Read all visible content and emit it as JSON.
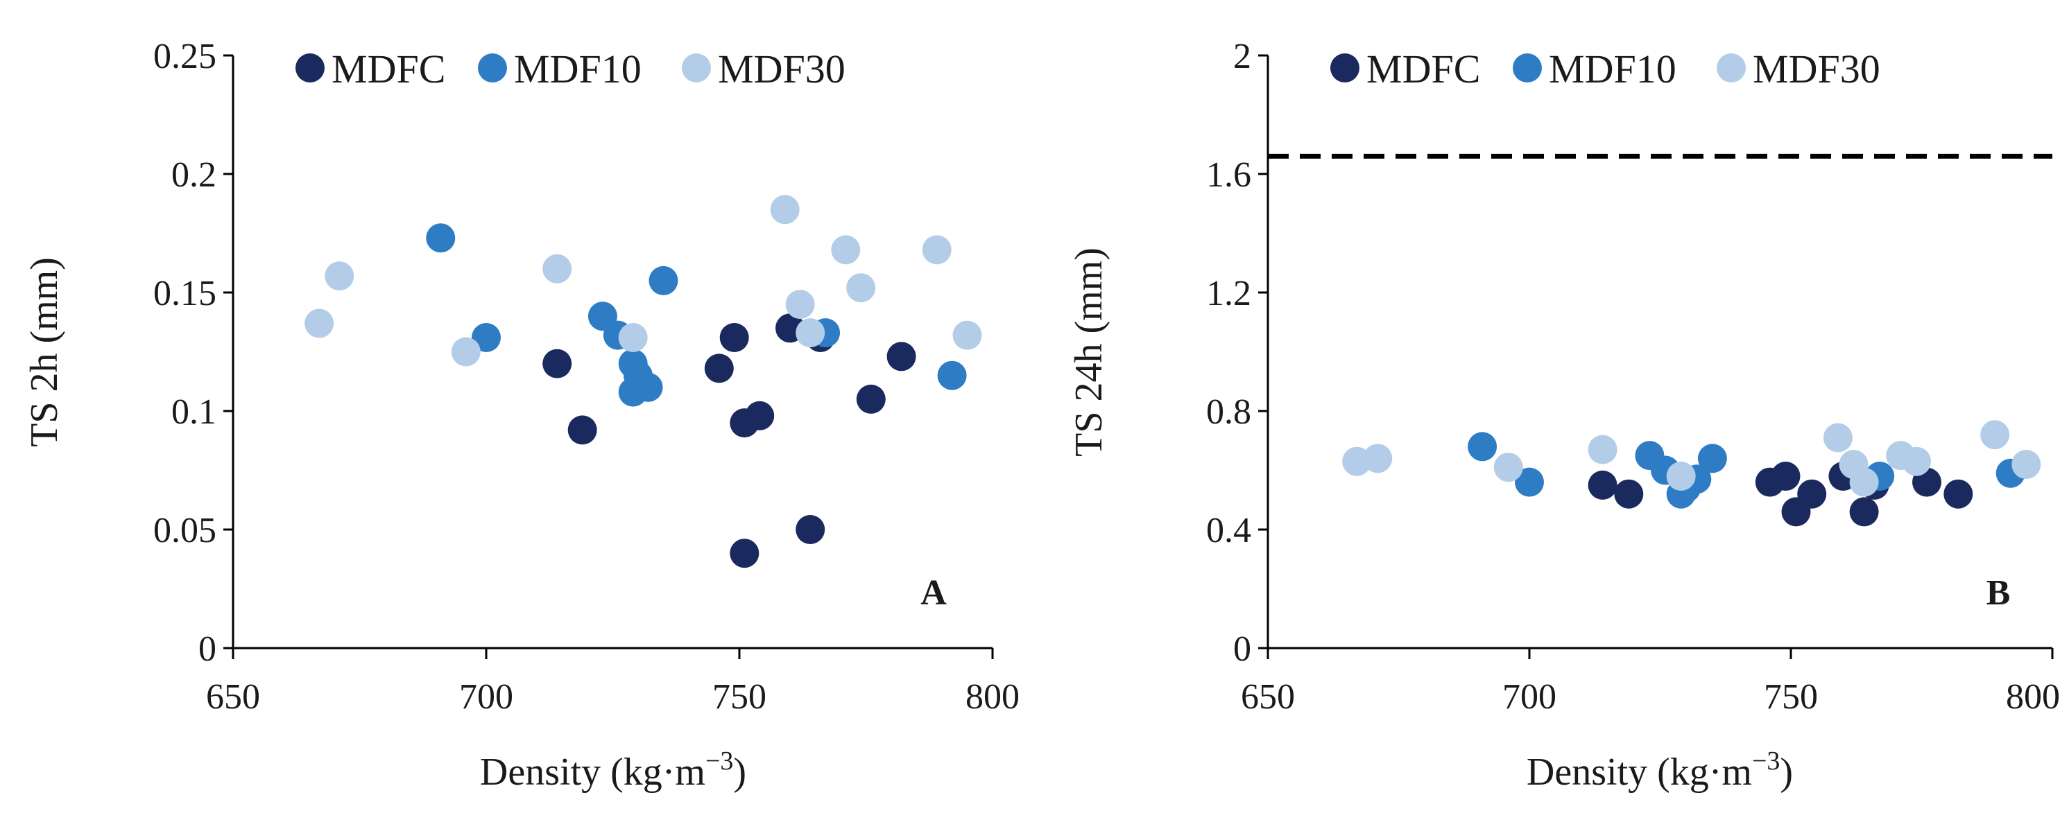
{
  "chart_data": [
    {
      "type": "scatter",
      "panel": "A",
      "xlabel": "Density (kg·m",
      "xlabel_sup": "−3",
      "xlabel_close": ")",
      "ylabel": "TS 2h (mm)",
      "xlim": [
        650,
        800
      ],
      "ylim": [
        0,
        0.25
      ],
      "xticks": [
        "650",
        "700",
        "750",
        "800"
      ],
      "yticks": [
        "0",
        "0.05",
        "0.1",
        "0.15",
        "0.2",
        "0.25"
      ],
      "legend_position": "top",
      "series": [
        {
          "name": "MDFC",
          "color": "#1b2a5e",
          "points": [
            [
              714,
              0.12
            ],
            [
              719,
              0.092
            ],
            [
              746,
              0.118
            ],
            [
              749,
              0.131
            ],
            [
              751,
              0.095
            ],
            [
              751,
              0.04
            ],
            [
              754,
              0.098
            ],
            [
              760,
              0.135
            ],
            [
              764,
              0.05
            ],
            [
              766,
              0.131
            ],
            [
              776,
              0.105
            ],
            [
              782,
              0.123
            ]
          ]
        },
        {
          "name": "MDF10",
          "color": "#2e7dc4",
          "points": [
            [
              691,
              0.173
            ],
            [
              700,
              0.131
            ],
            [
              723,
              0.14
            ],
            [
              726,
              0.132
            ],
            [
              729,
              0.12
            ],
            [
              729,
              0.108
            ],
            [
              730,
              0.115
            ],
            [
              732,
              0.11
            ],
            [
              735,
              0.155
            ],
            [
              767,
              0.133
            ],
            [
              792,
              0.115
            ]
          ]
        },
        {
          "name": "MDF30",
          "color": "#b3cde8",
          "points": [
            [
              667,
              0.137
            ],
            [
              671,
              0.157
            ],
            [
              696,
              0.125
            ],
            [
              714,
              0.16
            ],
            [
              729,
              0.131
            ],
            [
              759,
              0.185
            ],
            [
              762,
              0.145
            ],
            [
              764,
              0.133
            ],
            [
              771,
              0.168
            ],
            [
              774,
              0.152
            ],
            [
              789,
              0.168
            ],
            [
              795,
              0.132
            ]
          ]
        }
      ]
    },
    {
      "type": "scatter",
      "panel": "B",
      "xlabel": "Density (kg·m",
      "xlabel_sup": "−3",
      "xlabel_close": ")",
      "ylabel": "TS 24h (mm)",
      "xlim": [
        650,
        800
      ],
      "ylim": [
        0,
        2
      ],
      "xticks": [
        "650",
        "700",
        "750",
        "800"
      ],
      "yticks": [
        "0",
        "0.4",
        "0.8",
        "1.2",
        "1.6",
        "2"
      ],
      "reference_line_y": 1.66,
      "legend_position": "top",
      "series": [
        {
          "name": "MDFC",
          "color": "#1b2a5e",
          "points": [
            [
              714,
              0.55
            ],
            [
              719,
              0.52
            ],
            [
              746,
              0.56
            ],
            [
              749,
              0.58
            ],
            [
              751,
              0.46
            ],
            [
              754,
              0.52
            ],
            [
              760,
              0.58
            ],
            [
              764,
              0.46
            ],
            [
              766,
              0.55
            ],
            [
              776,
              0.56
            ],
            [
              782,
              0.52
            ]
          ]
        },
        {
          "name": "MDF10",
          "color": "#2e7dc4",
          "points": [
            [
              691,
              0.68
            ],
            [
              700,
              0.56
            ],
            [
              723,
              0.65
            ],
            [
              726,
              0.6
            ],
            [
              729,
              0.52
            ],
            [
              730,
              0.54
            ],
            [
              732,
              0.57
            ],
            [
              735,
              0.64
            ],
            [
              767,
              0.58
            ],
            [
              792,
              0.59
            ]
          ]
        },
        {
          "name": "MDF30",
          "color": "#b3cde8",
          "points": [
            [
              667,
              0.63
            ],
            [
              671,
              0.64
            ],
            [
              696,
              0.61
            ],
            [
              714,
              0.67
            ],
            [
              729,
              0.58
            ],
            [
              759,
              0.71
            ],
            [
              762,
              0.62
            ],
            [
              764,
              0.56
            ],
            [
              771,
              0.65
            ],
            [
              774,
              0.63
            ],
            [
              789,
              0.72
            ],
            [
              795,
              0.62
            ]
          ]
        }
      ]
    }
  ]
}
